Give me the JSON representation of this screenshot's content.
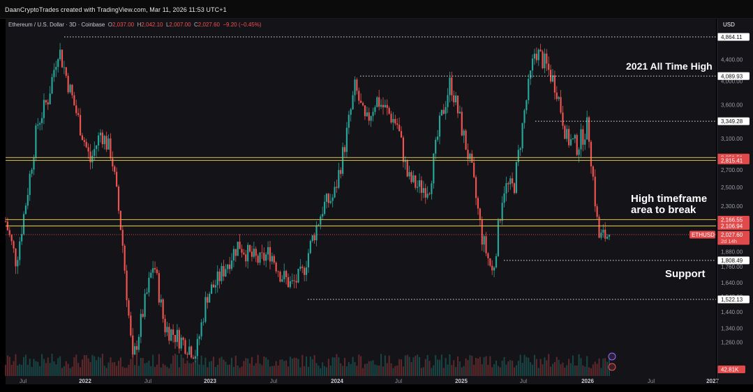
{
  "credit": "DaanCryptoTrades created with TradingView.com, Mar 11, 2026 11:53 UTC+1",
  "symbol": {
    "name": "Ethereum / U.S. Dollar · 3D · Coinbase",
    "o_key": "O",
    "o": "2,037.00",
    "h_key": "H",
    "h": "2,042.10",
    "l_key": "L",
    "l": "2,007.00",
    "c_key": "C",
    "c": "2,027.60",
    "change": "−9.20 (−0.45%)"
  },
  "currency": "USD",
  "annotations": {
    "ath": "2021 All Time High",
    "htf_line1": "High timeframe",
    "htf_line2": "area to break",
    "support": "Support"
  },
  "colors": {
    "up": "#26a69a",
    "down": "#ef5350",
    "zone": "#c7b24a",
    "background": "#131318",
    "price_tag": "#e04a4a"
  },
  "chart_data": {
    "type": "candlestick",
    "scale": "log",
    "y_ticks": [
      1260,
      1340,
      1440,
      1540,
      1640,
      1760,
      1880,
      2100,
      2300,
      2500,
      2700,
      3100,
      3600,
      4000,
      4400
    ],
    "y_tick_labels": [
      "1,260.00",
      "1,340.00",
      "1,440.00",
      "1,540.00",
      "1,640.00",
      "1,760.00",
      "1,880.00",
      "2,100.00",
      "2,300.00",
      "2,500.00",
      "2,700.00",
      "3,100.00",
      "3,600.00",
      "4,000.00",
      "4,400.00"
    ],
    "x_ticks": [
      "Jul",
      "2022",
      "Jul",
      "2023",
      "Jul",
      "2024",
      "Jul",
      "2025",
      "Jul",
      "2026",
      "Jul",
      "2027"
    ],
    "close_path": [
      [
        "2021-06",
        2150
      ],
      [
        "2021-07",
        1800
      ],
      [
        "2021-08",
        2400
      ],
      [
        "2021-09",
        3300
      ],
      [
        "2021-10",
        3700
      ],
      [
        "2021-11",
        4650
      ],
      [
        "2021-12",
        3900
      ],
      [
        "2022-01",
        3300
      ],
      [
        "2022-02",
        2800
      ],
      [
        "2022-03",
        3200
      ],
      [
        "2022-04",
        2900
      ],
      [
        "2022-05",
        2000
      ],
      [
        "2022-06",
        1150
      ],
      [
        "2022-07",
        1450
      ],
      [
        "2022-08",
        1800
      ],
      [
        "2022-09",
        1350
      ],
      [
        "2022-10",
        1300
      ],
      [
        "2022-11",
        1250
      ],
      [
        "2022-12",
        1200
      ],
      [
        "2023-01",
        1550
      ],
      [
        "2023-02",
        1650
      ],
      [
        "2023-03",
        1800
      ],
      [
        "2023-04",
        1950
      ],
      [
        "2023-05",
        1850
      ],
      [
        "2023-06",
        1800
      ],
      [
        "2023-07",
        1880
      ],
      [
        "2023-08",
        1700
      ],
      [
        "2023-09",
        1620
      ],
      [
        "2023-10",
        1700
      ],
      [
        "2023-11",
        2000
      ],
      [
        "2023-12",
        2300
      ],
      [
        "2024-01",
        2400
      ],
      [
        "2024-02",
        3000
      ],
      [
        "2024-03",
        3900
      ],
      [
        "2024-04",
        3300
      ],
      [
        "2024-05",
        3700
      ],
      [
        "2024-06",
        3500
      ],
      [
        "2024-07",
        3300
      ],
      [
        "2024-08",
        2600
      ],
      [
        "2024-09",
        2500
      ],
      [
        "2024-10",
        2500
      ],
      [
        "2024-11",
        3300
      ],
      [
        "2024-12",
        4000
      ],
      [
        "2025-01",
        3300
      ],
      [
        "2025-02",
        2700
      ],
      [
        "2025-03",
        2000
      ],
      [
        "2025-04",
        1700
      ],
      [
        "2025-05",
        2500
      ],
      [
        "2025-06",
        2500
      ],
      [
        "2025-07",
        3500
      ],
      [
        "2025-08",
        4600
      ],
      [
        "2025-09",
        4300
      ],
      [
        "2025-10",
        3900
      ],
      [
        "2025-11",
        3100
      ],
      [
        "2025-12",
        3000
      ],
      [
        "2026-01",
        3300
      ],
      [
        "2026-02",
        2000
      ],
      [
        "2026-03",
        2027.6
      ]
    ],
    "levels": [
      {
        "value": "4,864.11",
        "v": 4864.11,
        "style": "dotted",
        "tag": "white"
      },
      {
        "value": "4,089.93",
        "v": 4089.93,
        "style": "dotted",
        "tag": "white"
      },
      {
        "value": "3,349.28",
        "v": 3349.28,
        "style": "dotted",
        "tag": "white"
      },
      {
        "value": "2,851.51",
        "v": 2851.51,
        "style": "zone",
        "tag": "red"
      },
      {
        "value": "2,815.41",
        "v": 2815.41,
        "style": "zone",
        "tag": "red"
      },
      {
        "value": "2,166.55",
        "v": 2166.55,
        "style": "zone",
        "tag": "red"
      },
      {
        "value": "2,106.94",
        "v": 2106.94,
        "style": "zone",
        "tag": "red"
      },
      {
        "value": "1,808.49",
        "v": 1808.49,
        "style": "dotted",
        "tag": "white"
      },
      {
        "value": "1,522.13",
        "v": 1522.13,
        "style": "dotted",
        "tag": "white"
      }
    ],
    "last_price": {
      "symbol": "ETHUSD",
      "value": "2,027.60",
      "countdown": "2d 14h"
    },
    "volume_label": "42.81K"
  }
}
